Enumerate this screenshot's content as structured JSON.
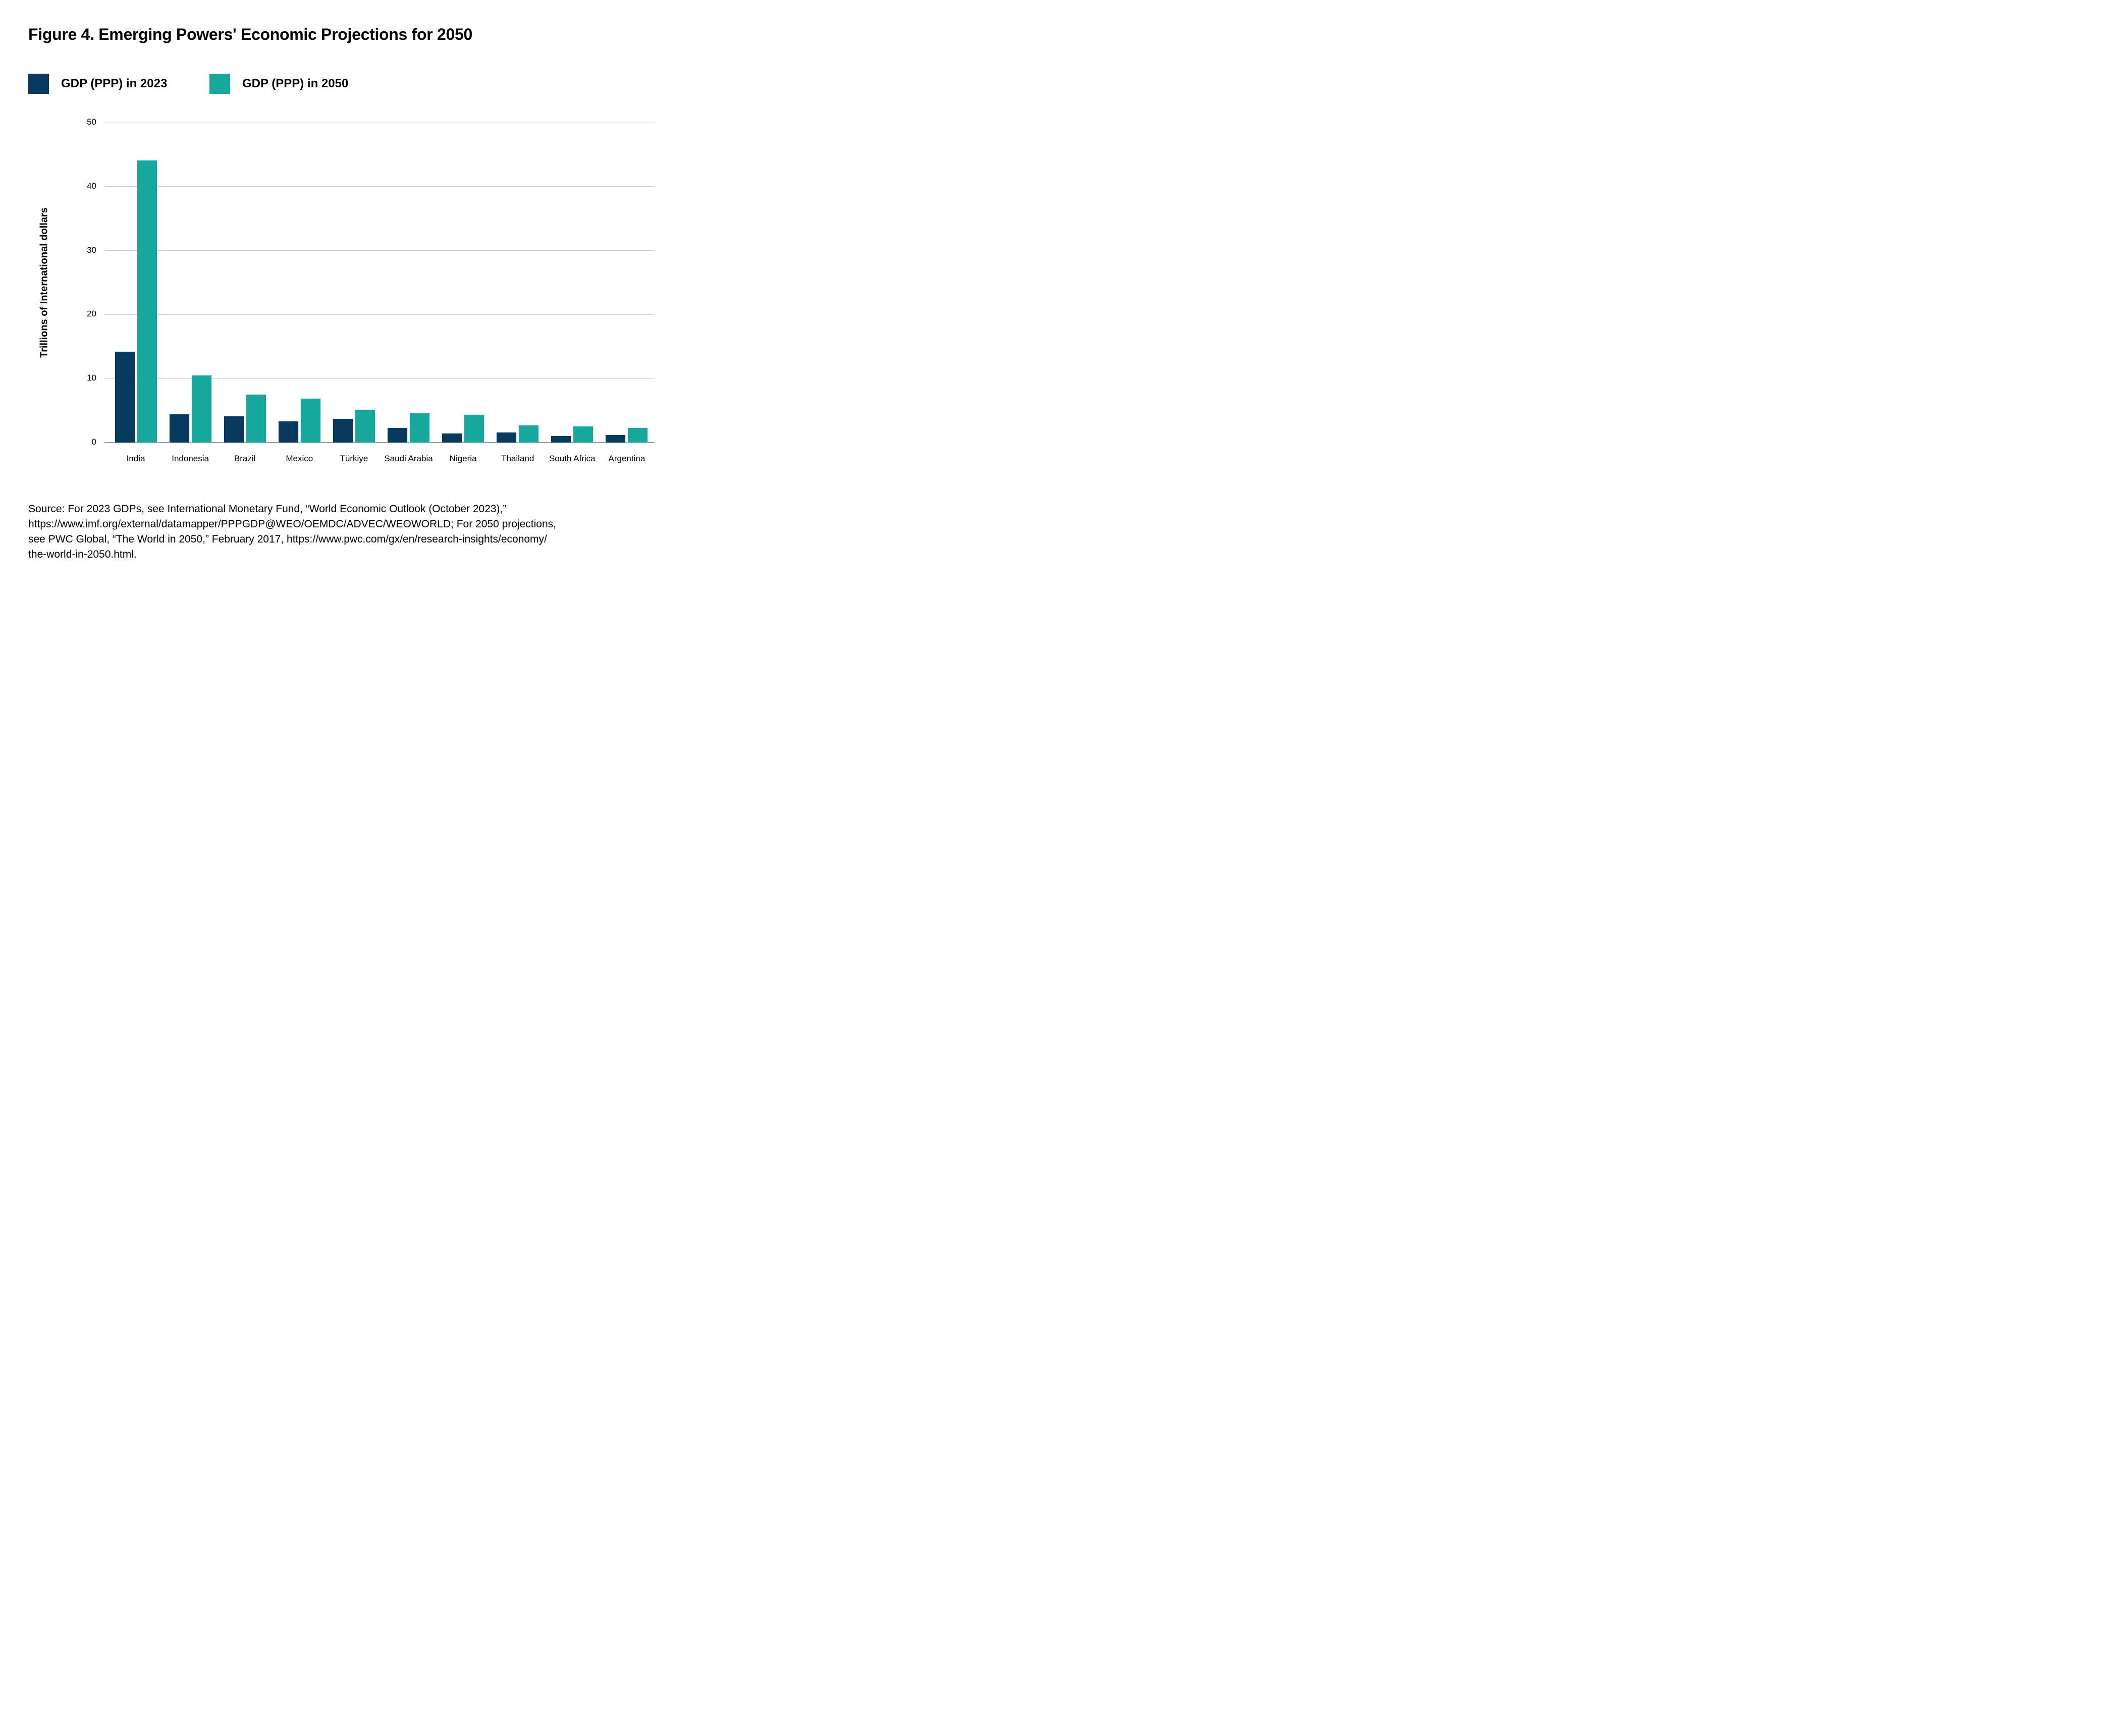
{
  "title": "Figure 4. Emerging Powers' Economic Projections for 2050",
  "legend": [
    {
      "label": "GDP (PPP) in 2023",
      "color": "#083a5e"
    },
    {
      "label": "GDP (PPP) in 2050",
      "color": "#16a89d"
    }
  ],
  "chart_data": {
    "type": "bar",
    "categories": [
      "India",
      "Indonesia",
      "Brazil",
      "Mexico",
      "Türkiye",
      "Saudi Arabia",
      "Nigeria",
      "Thailand",
      "South Africa",
      "Argentina"
    ],
    "series": [
      {
        "name": "GDP (PPP) in 2023",
        "color": "#083a5e",
        "values": [
          14.2,
          4.4,
          4.1,
          3.3,
          3.7,
          2.3,
          1.4,
          1.6,
          1.0,
          1.2
        ]
      },
      {
        "name": "GDP (PPP) in 2050",
        "color": "#16a89d",
        "values": [
          44.1,
          10.5,
          7.5,
          6.9,
          5.1,
          4.6,
          4.3,
          2.7,
          2.5,
          2.3
        ]
      }
    ],
    "title": "Figure 4. Emerging Powers' Economic Projections for 2050",
    "xlabel": "",
    "ylabel": "Trillions of International dollars",
    "yticks": [
      0,
      10,
      20,
      30,
      40,
      50
    ],
    "ylim": [
      0,
      50
    ],
    "grid": "horizontal",
    "legend_position": "top-left"
  },
  "colors": {
    "navy": "#083a5e",
    "teal": "#16a89d",
    "gridline": "#c9c9c9",
    "baseline": "#9b9b9b",
    "background": "#ffffff",
    "text": "#000000"
  },
  "source": {
    "lines": [
      "Source: For 2023 GDPs, see International Monetary Fund, “World Economic Outlook (October 2023),”",
      "https://www.imf.org/external/datamapper/PPPGDP@WEO/OEMDC/ADVEC/WEOWORLD; For 2050 projections,",
      "see PWC Global, “The World in 2050,” February 2017, https://www.pwc.com/gx/en/research-insights/economy/",
      "the-world-in-2050.html."
    ]
  }
}
